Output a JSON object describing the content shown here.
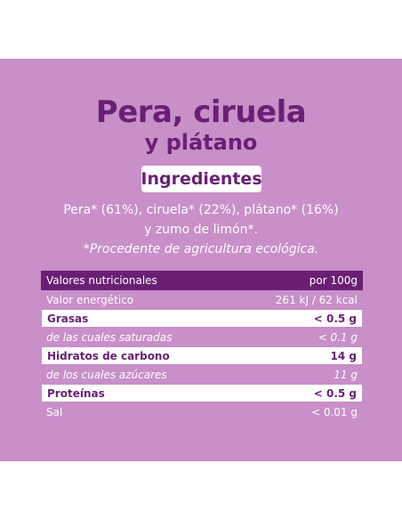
{
  "title": {
    "line1": "Pera, ciruela",
    "line2": "y plátano"
  },
  "ingredients": {
    "heading": "Ingredientes",
    "line1": "Pera* (61%), ciruela* (22%), plátano* (16%)",
    "line2": "y zumo de limón*.",
    "note": "*Procedente de agricultura ecológica."
  },
  "nutrition": {
    "header": {
      "label": "Valores nutricionales",
      "value": "por 100g"
    },
    "rows": [
      {
        "label": "Valor energético",
        "value": "261 kJ / 62 kcal"
      },
      {
        "label": "Grasas",
        "value": "< 0.5 g"
      },
      {
        "label": "de las cuales saturadas",
        "value": "< 0.1 g"
      },
      {
        "label": "Hidratos de carbono",
        "value": "14 g"
      },
      {
        "label": "de los cuales azúcares",
        "value": "11 g"
      },
      {
        "label": "Proteínas",
        "value": "< 0.5 g"
      },
      {
        "label": "Sal",
        "value": "< 0.01 g"
      }
    ]
  },
  "colors": {
    "panel": "#c88fc8",
    "accent": "#6a1f74",
    "white": "#ffffff"
  }
}
